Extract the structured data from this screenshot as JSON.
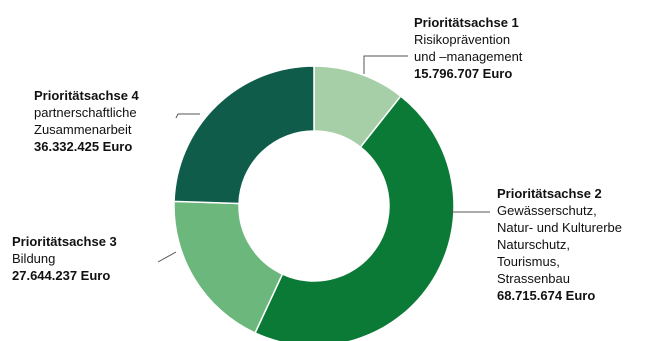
{
  "chart_data": {
    "type": "pie",
    "style": "donut",
    "colors": [
      "#a6cfa8",
      "#0a7a36",
      "#6cb77c",
      "#0f5c4a"
    ],
    "slices": [
      {
        "title": "Prioritätsachse 1",
        "description": [
          "Risikoprävention",
          "und –management"
        ],
        "value_label": "15.796.707 Euro",
        "value": 15796707
      },
      {
        "title": "Prioritätsachse 2",
        "description": [
          "Gewässerschutz,",
          "Natur- und Kulturerbe",
          "Naturschutz,",
          "Tourismus,",
          "Strassenbau"
        ],
        "value_label": "68.715.674 Euro",
        "value": 68715674
      },
      {
        "title": "Prioritätsachse 3",
        "description": [
          "Bildung"
        ],
        "value_label": "27.644.237 Euro",
        "value": 27644237
      },
      {
        "title": "Prioritätsachse 4",
        "description": [
          "partnerschaftliche",
          "Zusammenarbeit"
        ],
        "value_label": "36.332.425 Euro",
        "value": 36332425
      }
    ]
  }
}
